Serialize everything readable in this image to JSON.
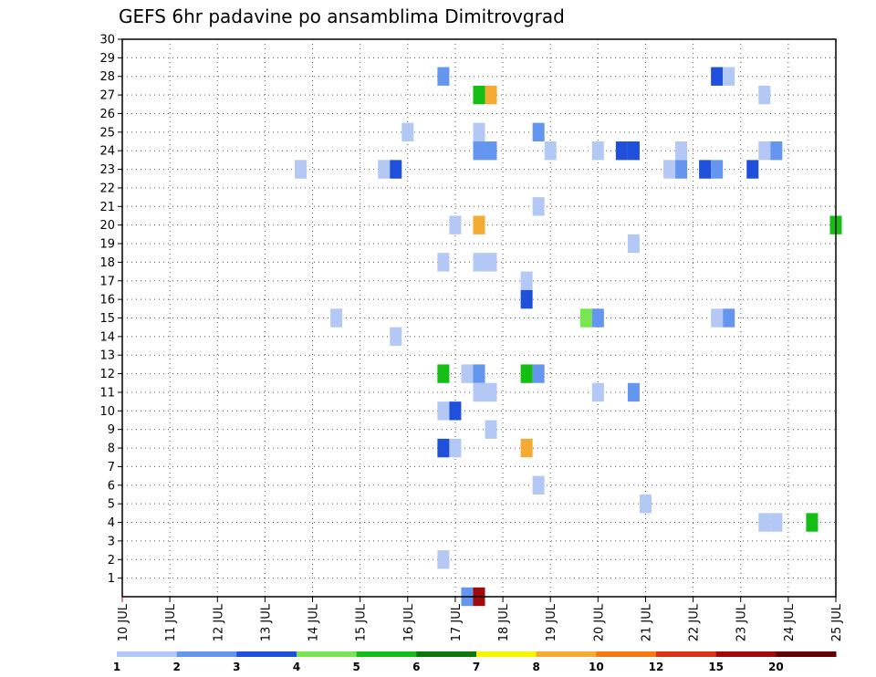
{
  "chart_data": {
    "type": "heatmap",
    "title": "GEFS 6hr padavine po ansamblima Dimitrovgrad",
    "xlabel": "",
    "ylabel": "",
    "x_tick_labels": [
      "10 JUL",
      "11 JUL",
      "12 JUL",
      "13 JUL",
      "14 JUL",
      "15 JUL",
      "16 JUL",
      "17 JUL",
      "18 JUL",
      "19 JUL",
      "20 JUL",
      "21 JUL",
      "22 JUL",
      "23 JUL",
      "24 JUL",
      "25 JUL"
    ],
    "x_range_days": [
      0,
      15
    ],
    "y_range": [
      0,
      30
    ],
    "y_ticks": [
      1,
      2,
      3,
      4,
      5,
      6,
      7,
      8,
      9,
      10,
      11,
      12,
      13,
      14,
      15,
      16,
      17,
      18,
      19,
      20,
      21,
      22,
      23,
      24,
      25,
      26,
      27,
      28,
      29,
      30
    ],
    "grid": "dotted",
    "step_hours": 6,
    "colorbar": {
      "labels": [
        "1",
        "2",
        "3",
        "4",
        "5",
        "6",
        "7",
        "8",
        "10",
        "12",
        "15",
        "20"
      ],
      "colors": [
        "#b4c8f5",
        "#6496f0",
        "#1e50dc",
        "#78e650",
        "#14be14",
        "#0a780a",
        "#f5f500",
        "#f5aa32",
        "#f57814",
        "#dc3214",
        "#a00a0a",
        "#640000"
      ]
    },
    "cells": [
      {
        "day": 6.75,
        "member": 28,
        "level": 2
      },
      {
        "day": 12.5,
        "member": 28,
        "level": 3
      },
      {
        "day": 12.75,
        "member": 28,
        "level": 1
      },
      {
        "day": 7.5,
        "member": 27,
        "level": 5
      },
      {
        "day": 7.75,
        "member": 27,
        "level": 8
      },
      {
        "day": 13.5,
        "member": 27,
        "level": 1
      },
      {
        "day": 6,
        "member": 25,
        "level": 1
      },
      {
        "day": 7.5,
        "member": 25,
        "level": 1
      },
      {
        "day": 8.75,
        "member": 25,
        "level": 2
      },
      {
        "day": 7.5,
        "member": 24,
        "level": 2
      },
      {
        "day": 7.75,
        "member": 24,
        "level": 2
      },
      {
        "day": 9,
        "member": 24,
        "level": 1
      },
      {
        "day": 10,
        "member": 24,
        "level": 1
      },
      {
        "day": 10.5,
        "member": 24,
        "level": 3
      },
      {
        "day": 10.75,
        "member": 24,
        "level": 3
      },
      {
        "day": 11.75,
        "member": 24,
        "level": 1
      },
      {
        "day": 13.5,
        "member": 24,
        "level": 1
      },
      {
        "day": 13.75,
        "member": 24,
        "level": 2
      },
      {
        "day": 3.75,
        "member": 23,
        "level": 1
      },
      {
        "day": 5.5,
        "member": 23,
        "level": 1
      },
      {
        "day": 5.75,
        "member": 23,
        "level": 3
      },
      {
        "day": 11.5,
        "member": 23,
        "level": 1
      },
      {
        "day": 11.75,
        "member": 23,
        "level": 2
      },
      {
        "day": 12.25,
        "member": 23,
        "level": 3
      },
      {
        "day": 12.5,
        "member": 23,
        "level": 2
      },
      {
        "day": 13.25,
        "member": 23,
        "level": 3
      },
      {
        "day": 8.75,
        "member": 21,
        "level": 1
      },
      {
        "day": 7,
        "member": 20,
        "level": 1
      },
      {
        "day": 7.5,
        "member": 20,
        "level": 8
      },
      {
        "day": 15,
        "member": 20,
        "level": 5
      },
      {
        "day": 10.75,
        "member": 19,
        "level": 1
      },
      {
        "day": 6.75,
        "member": 18,
        "level": 1
      },
      {
        "day": 7.5,
        "member": 18,
        "level": 1
      },
      {
        "day": 7.75,
        "member": 18,
        "level": 1
      },
      {
        "day": 8.5,
        "member": 17,
        "level": 1
      },
      {
        "day": 8.5,
        "member": 16,
        "level": 3
      },
      {
        "day": 4.5,
        "member": 15,
        "level": 1
      },
      {
        "day": 9.75,
        "member": 15,
        "level": 4
      },
      {
        "day": 10,
        "member": 15,
        "level": 2
      },
      {
        "day": 12.5,
        "member": 15,
        "level": 1
      },
      {
        "day": 12.75,
        "member": 15,
        "level": 2
      },
      {
        "day": 5.75,
        "member": 14,
        "level": 1
      },
      {
        "day": 6.75,
        "member": 12,
        "level": 5
      },
      {
        "day": 7.25,
        "member": 12,
        "level": 1
      },
      {
        "day": 7.5,
        "member": 12,
        "level": 2
      },
      {
        "day": 8.5,
        "member": 12,
        "level": 5
      },
      {
        "day": 8.75,
        "member": 12,
        "level": 2
      },
      {
        "day": 7.5,
        "member": 11,
        "level": 1
      },
      {
        "day": 7.75,
        "member": 11,
        "level": 1
      },
      {
        "day": 10,
        "member": 11,
        "level": 1
      },
      {
        "day": 10.75,
        "member": 11,
        "level": 2
      },
      {
        "day": 6.75,
        "member": 10,
        "level": 1
      },
      {
        "day": 7,
        "member": 10,
        "level": 3
      },
      {
        "day": 7.75,
        "member": 9,
        "level": 1
      },
      {
        "day": 6.75,
        "member": 8,
        "level": 3
      },
      {
        "day": 7,
        "member": 8,
        "level": 1
      },
      {
        "day": 8.5,
        "member": 8,
        "level": 8
      },
      {
        "day": 8.75,
        "member": 6,
        "level": 1
      },
      {
        "day": 11,
        "member": 5,
        "level": 1
      },
      {
        "day": 13.5,
        "member": 4,
        "level": 1
      },
      {
        "day": 13.75,
        "member": 4,
        "level": 1
      },
      {
        "day": 14.5,
        "member": 4,
        "level": 5
      },
      {
        "day": 6.75,
        "member": 2,
        "level": 1
      },
      {
        "day": 7.25,
        "member": 0,
        "level": 2
      },
      {
        "day": 7.5,
        "member": 0,
        "level": 11
      }
    ]
  }
}
